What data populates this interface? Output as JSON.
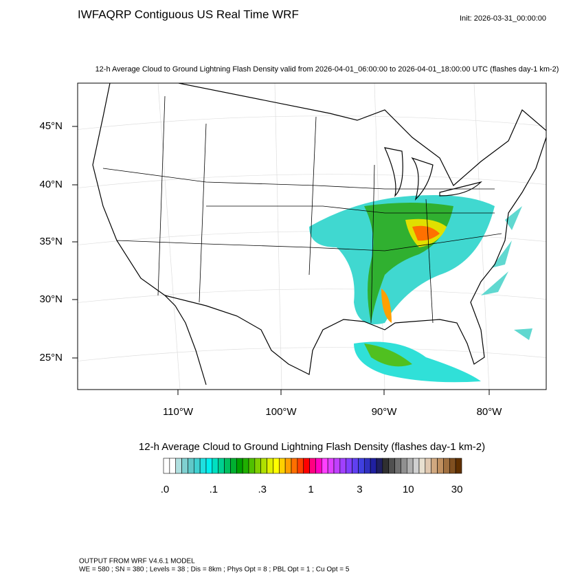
{
  "header": {
    "title": "IWFAQRP Contiguous US Real Time WRF",
    "init": "Init: 2026-03-31_00:00:00",
    "subtitle": "12-h Average Cloud to Ground Lightning Flash Density valid from 2026-04-01_06:00:00 to 2026-04-01_18:00:00 UTC   (flashes day-1 km-2)"
  },
  "map": {
    "lat_labels": [
      "45°N",
      "40°N",
      "35°N",
      "30°N",
      "25°N"
    ],
    "lon_labels": [
      "110°W",
      "100°W",
      "90°W",
      "80°W"
    ]
  },
  "colorbar": {
    "title": "12-h Average Cloud to Ground Lightning Flash Density  (flashes day-1 km-2)",
    "labels": [
      ".0",
      ".1",
      ".3",
      "1",
      "3",
      "10",
      "30"
    ],
    "colors": [
      "#ffffff",
      "#ffffff",
      "#b0e0e0",
      "#80d0d0",
      "#60c8c8",
      "#40d0d0",
      "#20e0e0",
      "#00f0f0",
      "#00e0c0",
      "#00d090",
      "#00c060",
      "#00b030",
      "#00a000",
      "#20b000",
      "#50c000",
      "#80d000",
      "#b0e000",
      "#e0f000",
      "#ffff00",
      "#ffd000",
      "#ffa000",
      "#ff7000",
      "#ff4000",
      "#ff0000",
      "#ff0080",
      "#ff00c0",
      "#ff40ff",
      "#e040ff",
      "#c040ff",
      "#a040ff",
      "#8040ff",
      "#6040f0",
      "#4040e0",
      "#3030c0",
      "#2020a0",
      "#202060",
      "#303030",
      "#505050",
      "#707070",
      "#909090",
      "#b0b0b0",
      "#d0d0d0",
      "#e8e0d0",
      "#e0c8b0",
      "#d0a880",
      "#c09060",
      "#a07040",
      "#805020",
      "#603000"
    ]
  },
  "footer": {
    "line1": "OUTPUT FROM WRF V4.6.1 MODEL",
    "line2": "WE = 580 ; SN = 380 ; Levels = 38 ; Dis = 8km ; Phys Opt = 8 ; PBL Opt = 1 ; Cu Opt = 5"
  }
}
